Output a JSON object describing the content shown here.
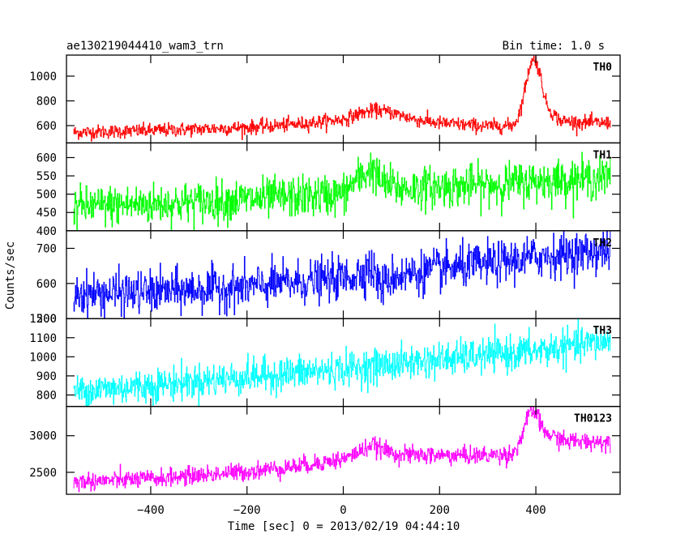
{
  "chart_data": {
    "type": "line",
    "title_left": "ae130219044410_wam3_trn",
    "title_right": "Bin time: 1.0 s",
    "xlabel": "Time [sec] 0 = 2013/02/19 04:44:10",
    "ylabel": "Counts/sec",
    "xlim": [
      -575,
      575
    ],
    "xticks": [
      -400,
      -200,
      0,
      200,
      400
    ],
    "x_range_data": [
      -560,
      555
    ],
    "grid": false,
    "panels": [
      {
        "name": "TH0",
        "color": "#ff0000",
        "ylim": [
          460,
          1170
        ],
        "yticks": [
          600,
          800,
          1000
        ],
        "profile_x": [
          -560,
          -400,
          -200,
          -100,
          0,
          40,
          70,
          100,
          150,
          200,
          300,
          350,
          360,
          370,
          380,
          390,
          400,
          410,
          420,
          430,
          450,
          500,
          555
        ],
        "profile_y": [
          545,
          560,
          585,
          610,
          650,
          705,
          725,
          705,
          650,
          620,
          595,
          600,
          640,
          760,
          950,
          1120,
          1130,
          1000,
          800,
          720,
          640,
          625,
          620
        ],
        "noise": 28
      },
      {
        "name": "TH1",
        "color": "#00ff00",
        "ylim": [
          400,
          640
        ],
        "yticks": [
          400,
          450,
          500,
          550,
          600
        ],
        "profile_x": [
          -560,
          -300,
          -100,
          0,
          20,
          40,
          60,
          80,
          120,
          200,
          300,
          400,
          555
        ],
        "profile_y": [
          465,
          478,
          492,
          500,
          530,
          550,
          570,
          530,
          515,
          520,
          525,
          535,
          545
        ],
        "noise": 28
      },
      {
        "name": "TH2",
        "color": "#0000ff",
        "ylim": [
          500,
          750
        ],
        "yticks": [
          500,
          600,
          700
        ],
        "profile_x": [
          -560,
          -400,
          -200,
          0,
          40,
          50,
          60,
          80,
          100,
          200,
          300,
          400,
          555
        ],
        "profile_y": [
          570,
          575,
          590,
          615,
          630,
          650,
          640,
          590,
          620,
          640,
          655,
          675,
          695
        ],
        "noise": 30
      },
      {
        "name": "TH3",
        "color": "#00ffff",
        "ylim": [
          740,
          1200
        ],
        "yticks": [
          800,
          900,
          1000,
          1100,
          1200
        ],
        "profile_x": [
          -560,
          -400,
          -200,
          0,
          200,
          400,
          555
        ],
        "profile_y": [
          820,
          850,
          895,
          935,
          985,
          1030,
          1085
        ],
        "noise": 45
      },
      {
        "name": "TH0123",
        "color": "#ff00ff",
        "ylim": [
          2200,
          3400
        ],
        "yticks": [
          2500,
          3000
        ],
        "profile_x": [
          -560,
          -400,
          -200,
          -100,
          0,
          40,
          60,
          80,
          120,
          200,
          300,
          350,
          360,
          370,
          380,
          390,
          400,
          410,
          420,
          440,
          460,
          500,
          555
        ],
        "profile_y": [
          2370,
          2410,
          2510,
          2580,
          2680,
          2800,
          2880,
          2810,
          2740,
          2730,
          2730,
          2750,
          2820,
          2980,
          3200,
          3330,
          3320,
          3150,
          3040,
          2980,
          2930,
          2920,
          2920
        ],
        "noise": 60
      }
    ]
  }
}
